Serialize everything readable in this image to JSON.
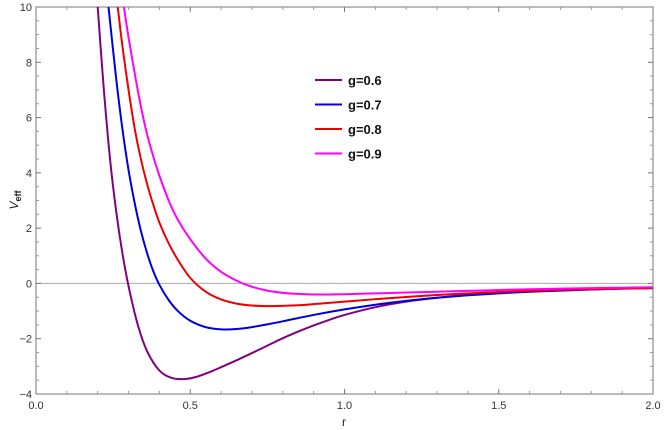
{
  "chart_data": {
    "type": "line",
    "title": "",
    "xlabel": "r",
    "ylabel": {
      "main": "V",
      "sub": "eff"
    },
    "xlim": [
      0,
      2
    ],
    "ylim": [
      -4,
      10
    ],
    "xticks": [
      0.0,
      0.5,
      1.0,
      1.5,
      2.0
    ],
    "xtick_labels": [
      "0.0",
      "0.5",
      "1.0",
      "1.5",
      "2.0"
    ],
    "yticks": [
      -4,
      -2,
      0,
      2,
      4,
      6,
      8,
      10
    ],
    "ytick_labels": [
      "−4",
      "−2",
      "0",
      "2",
      "4",
      "6",
      "8",
      "10"
    ],
    "grid": false,
    "zero_line": true,
    "legend_position": "top-center",
    "series": [
      {
        "name": "g=0.6",
        "color": "#800080",
        "x": [
          0.2,
          0.22,
          0.24,
          0.26,
          0.28,
          0.3,
          0.33,
          0.36,
          0.4,
          0.44,
          0.48,
          0.52,
          0.56,
          0.6,
          0.65,
          0.7,
          0.75,
          0.8,
          0.85,
          0.9,
          0.95,
          1.0,
          1.1,
          1.2,
          1.3,
          1.4,
          1.5,
          1.6,
          1.7,
          1.8,
          1.9,
          2.0
        ],
        "y": [
          10.0,
          7.0,
          4.5,
          2.6,
          1.1,
          -0.1,
          -1.5,
          -2.45,
          -3.15,
          -3.42,
          -3.46,
          -3.38,
          -3.22,
          -3.03,
          -2.78,
          -2.52,
          -2.25,
          -1.98,
          -1.74,
          -1.52,
          -1.32,
          -1.14,
          -0.86,
          -0.66,
          -0.52,
          -0.42,
          -0.34,
          -0.28,
          -0.24,
          -0.21,
          -0.18,
          -0.16
        ]
      },
      {
        "name": "g=0.7",
        "color": "#0000dd",
        "x": [
          0.235,
          0.26,
          0.28,
          0.3,
          0.32,
          0.34,
          0.36,
          0.38,
          0.4,
          0.43,
          0.46,
          0.5,
          0.55,
          0.6,
          0.65,
          0.7,
          0.75,
          0.8,
          0.9,
          1.0,
          1.1,
          1.2,
          1.3,
          1.4,
          1.5,
          1.6,
          1.7,
          1.8,
          1.9,
          2.0
        ],
        "y": [
          10.0,
          7.4,
          5.6,
          4.1,
          2.9,
          1.9,
          1.1,
          0.45,
          -0.05,
          -0.6,
          -1.0,
          -1.35,
          -1.58,
          -1.66,
          -1.65,
          -1.58,
          -1.48,
          -1.37,
          -1.14,
          -0.94,
          -0.77,
          -0.63,
          -0.52,
          -0.43,
          -0.36,
          -0.3,
          -0.26,
          -0.22,
          -0.19,
          -0.17
        ]
      },
      {
        "name": "g=0.8",
        "color": "#ee0000",
        "x": [
          0.265,
          0.28,
          0.3,
          0.32,
          0.34,
          0.36,
          0.38,
          0.4,
          0.43,
          0.46,
          0.5,
          0.55,
          0.6,
          0.65,
          0.7,
          0.75,
          0.8,
          0.85,
          0.9,
          1.0,
          1.1,
          1.2,
          1.3,
          1.4,
          1.5,
          1.6,
          1.7,
          1.8,
          1.9,
          2.0
        ],
        "y": [
          10.0,
          8.6,
          7.0,
          5.6,
          4.5,
          3.6,
          2.85,
          2.2,
          1.45,
          0.85,
          0.2,
          -0.3,
          -0.58,
          -0.73,
          -0.8,
          -0.82,
          -0.81,
          -0.79,
          -0.75,
          -0.66,
          -0.57,
          -0.49,
          -0.42,
          -0.36,
          -0.31,
          -0.27,
          -0.24,
          -0.21,
          -0.19,
          -0.17
        ]
      },
      {
        "name": "g=0.9",
        "color": "#ff00ff",
        "x": [
          0.285,
          0.3,
          0.32,
          0.34,
          0.36,
          0.38,
          0.4,
          0.43,
          0.46,
          0.5,
          0.55,
          0.6,
          0.65,
          0.7,
          0.75,
          0.8,
          0.85,
          0.9,
          0.95,
          1.0,
          1.1,
          1.2,
          1.3,
          1.4,
          1.5,
          1.6,
          1.7,
          1.8,
          1.9,
          2.0
        ],
        "y": [
          10.0,
          8.9,
          7.6,
          6.4,
          5.4,
          4.6,
          3.9,
          3.0,
          2.3,
          1.6,
          0.9,
          0.42,
          0.1,
          -0.12,
          -0.26,
          -0.34,
          -0.38,
          -0.4,
          -0.4,
          -0.39,
          -0.36,
          -0.33,
          -0.3,
          -0.27,
          -0.24,
          -0.21,
          -0.19,
          -0.17,
          -0.155,
          -0.14
        ]
      }
    ]
  }
}
